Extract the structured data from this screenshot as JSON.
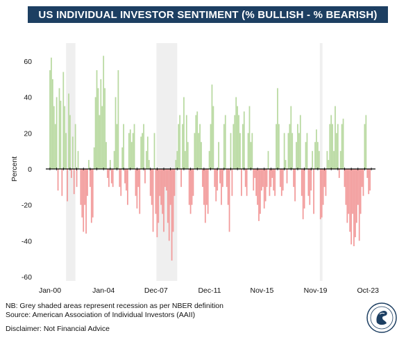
{
  "title": "US INDIVIDUAL INVESTOR SENTIMENT (% BULLISH - % BEARISH)",
  "notes": {
    "nb": "NB: Grey shaded areas represent recession as per NBER definition",
    "source": "Source: American Association of Individual Investors (AAII)",
    "disclaimer": "Disclaimer: Not Financial Advice"
  },
  "colors": {
    "title_bg": "#1d3f62",
    "bullish": "#b8d9a0",
    "bearish": "#f29a9a",
    "recession": "#efefef",
    "zero_line": "#000000"
  },
  "chart_data": {
    "type": "bar",
    "title": "US INDIVIDUAL INVESTOR SENTIMENT (% BULLISH - % BEARISH)",
    "xlabel": "",
    "ylabel": "Percent",
    "ylim": [
      -60,
      60
    ],
    "yticks": [
      60,
      40,
      20,
      0,
      -20,
      -40,
      -60
    ],
    "xlim": [
      2000.0,
      2024.1
    ],
    "xticks": [
      {
        "label": "Jan-00",
        "x": 2000.0
      },
      {
        "label": "Jan-04",
        "x": 2004.0
      },
      {
        "label": "Dec-07",
        "x": 2007.92
      },
      {
        "label": "Dec-11",
        "x": 2011.92
      },
      {
        "label": "Nov-15",
        "x": 2015.83
      },
      {
        "label": "Nov-19",
        "x": 2019.83
      },
      {
        "label": "Oct-23",
        "x": 2023.75
      }
    ],
    "grid": false,
    "recessions": [
      [
        2001.2,
        2001.9
      ],
      [
        2007.95,
        2009.5
      ],
      [
        2020.15,
        2020.35
      ]
    ],
    "series": [
      {
        "points": [
          [
            2000.0,
            55
          ],
          [
            2000.1,
            62
          ],
          [
            2000.2,
            50
          ],
          [
            2000.3,
            35
          ],
          [
            2000.4,
            25
          ],
          [
            2000.5,
            40
          ],
          [
            2000.6,
            -12
          ],
          [
            2000.7,
            45
          ],
          [
            2000.8,
            38
          ],
          [
            2000.9,
            -15
          ],
          [
            2001.0,
            54
          ],
          [
            2001.1,
            35
          ],
          [
            2001.2,
            20
          ],
          [
            2001.3,
            -18
          ],
          [
            2001.4,
            42
          ],
          [
            2001.5,
            30
          ],
          [
            2001.6,
            -5
          ],
          [
            2001.7,
            18
          ],
          [
            2001.8,
            -14
          ],
          [
            2001.9,
            25
          ],
          [
            2002.0,
            -10
          ],
          [
            2002.1,
            10
          ],
          [
            2002.3,
            -20
          ],
          [
            2002.4,
            -27
          ],
          [
            2002.5,
            -35
          ],
          [
            2002.6,
            -20
          ],
          [
            2002.7,
            -36
          ],
          [
            2002.8,
            -15
          ],
          [
            2002.9,
            5
          ],
          [
            2003.0,
            -10
          ],
          [
            2003.1,
            -30
          ],
          [
            2003.2,
            -27
          ],
          [
            2003.3,
            12
          ],
          [
            2003.4,
            40
          ],
          [
            2003.5,
            55
          ],
          [
            2003.6,
            45
          ],
          [
            2003.7,
            30
          ],
          [
            2003.8,
            50
          ],
          [
            2003.9,
            35
          ],
          [
            2004.0,
            63
          ],
          [
            2004.1,
            45
          ],
          [
            2004.2,
            15
          ],
          [
            2004.3,
            -5
          ],
          [
            2004.4,
            -10
          ],
          [
            2004.5,
            5
          ],
          [
            2004.6,
            -8
          ],
          [
            2004.7,
            -10
          ],
          [
            2004.8,
            10
          ],
          [
            2004.9,
            40
          ],
          [
            2005.0,
            25
          ],
          [
            2005.1,
            55
          ],
          [
            2005.2,
            -10
          ],
          [
            2005.3,
            -15
          ],
          [
            2005.4,
            12
          ],
          [
            2005.5,
            25
          ],
          [
            2005.6,
            -8
          ],
          [
            2005.7,
            -12
          ],
          [
            2005.8,
            -20
          ],
          [
            2005.9,
            20
          ],
          [
            2006.0,
            22
          ],
          [
            2006.1,
            15
          ],
          [
            2006.2,
            20
          ],
          [
            2006.3,
            25
          ],
          [
            2006.4,
            -15
          ],
          [
            2006.5,
            -22
          ],
          [
            2006.6,
            -10
          ],
          [
            2006.7,
            -25
          ],
          [
            2006.8,
            18
          ],
          [
            2006.9,
            20
          ],
          [
            2007.0,
            25
          ],
          [
            2007.1,
            -8
          ],
          [
            2007.2,
            10
          ],
          [
            2007.3,
            18
          ],
          [
            2007.4,
            5
          ],
          [
            2007.5,
            -15
          ],
          [
            2007.6,
            -20
          ],
          [
            2007.7,
            -35
          ],
          [
            2007.8,
            20
          ],
          [
            2007.9,
            -25
          ],
          [
            2008.0,
            -38
          ],
          [
            2008.1,
            -30
          ],
          [
            2008.2,
            -15
          ],
          [
            2008.3,
            -20
          ],
          [
            2008.4,
            -25
          ],
          [
            2008.5,
            -35
          ],
          [
            2008.6,
            -10
          ],
          [
            2008.7,
            -12
          ],
          [
            2008.8,
            -30
          ],
          [
            2008.9,
            -40
          ],
          [
            2009.0,
            -20
          ],
          [
            2009.1,
            -51
          ],
          [
            2009.2,
            -35
          ],
          [
            2009.3,
            -15
          ],
          [
            2009.4,
            5
          ],
          [
            2009.5,
            10
          ],
          [
            2009.6,
            25
          ],
          [
            2009.7,
            30
          ],
          [
            2009.8,
            -10
          ],
          [
            2009.9,
            25
          ],
          [
            2010.0,
            40
          ],
          [
            2010.1,
            10
          ],
          [
            2010.2,
            30
          ],
          [
            2010.3,
            15
          ],
          [
            2010.4,
            -20
          ],
          [
            2010.5,
            -25
          ],
          [
            2010.6,
            -20
          ],
          [
            2010.7,
            -15
          ],
          [
            2010.8,
            20
          ],
          [
            2010.9,
            30
          ],
          [
            2011.0,
            32
          ],
          [
            2011.1,
            20
          ],
          [
            2011.2,
            25
          ],
          [
            2011.3,
            15
          ],
          [
            2011.4,
            -10
          ],
          [
            2011.5,
            -20
          ],
          [
            2011.6,
            -30
          ],
          [
            2011.7,
            -20
          ],
          [
            2011.8,
            -25
          ],
          [
            2011.9,
            10
          ],
          [
            2012.0,
            25
          ],
          [
            2012.1,
            47
          ],
          [
            2012.2,
            35
          ],
          [
            2012.3,
            -10
          ],
          [
            2012.4,
            -18
          ],
          [
            2012.5,
            -12
          ],
          [
            2012.6,
            15
          ],
          [
            2012.7,
            -8
          ],
          [
            2012.8,
            -20
          ],
          [
            2012.9,
            -10
          ],
          [
            2013.0,
            25
          ],
          [
            2013.1,
            30
          ],
          [
            2013.2,
            -10
          ],
          [
            2013.3,
            -20
          ],
          [
            2013.4,
            -35
          ],
          [
            2013.5,
            20
          ],
          [
            2013.6,
            -15
          ],
          [
            2013.7,
            25
          ],
          [
            2013.8,
            30
          ],
          [
            2013.9,
            40
          ],
          [
            2014.0,
            35
          ],
          [
            2014.1,
            30
          ],
          [
            2014.2,
            20
          ],
          [
            2014.3,
            -15
          ],
          [
            2014.4,
            25
          ],
          [
            2014.5,
            32
          ],
          [
            2014.6,
            -10
          ],
          [
            2014.7,
            -15
          ],
          [
            2014.8,
            20
          ],
          [
            2014.9,
            35
          ],
          [
            2015.0,
            15
          ],
          [
            2015.1,
            20
          ],
          [
            2015.2,
            -12
          ],
          [
            2015.3,
            -5
          ],
          [
            2015.4,
            -15
          ],
          [
            2015.5,
            -20
          ],
          [
            2015.6,
            -29
          ],
          [
            2015.7,
            -25
          ],
          [
            2015.8,
            -12
          ],
          [
            2015.9,
            -10
          ],
          [
            2016.0,
            -22
          ],
          [
            2016.1,
            -18
          ],
          [
            2016.2,
            -10
          ],
          [
            2016.3,
            10
          ],
          [
            2016.4,
            -15
          ],
          [
            2016.5,
            -10
          ],
          [
            2016.6,
            -5
          ],
          [
            2016.7,
            -12
          ],
          [
            2016.8,
            -15
          ],
          [
            2016.9,
            25
          ],
          [
            2017.0,
            45
          ],
          [
            2017.1,
            25
          ],
          [
            2017.2,
            -10
          ],
          [
            2017.3,
            -15
          ],
          [
            2017.4,
            -12
          ],
          [
            2017.5,
            20
          ],
          [
            2017.6,
            5
          ],
          [
            2017.7,
            -8
          ],
          [
            2017.8,
            20
          ],
          [
            2017.9,
            25
          ],
          [
            2018.0,
            35
          ],
          [
            2018.1,
            20
          ],
          [
            2018.2,
            -10
          ],
          [
            2018.3,
            -18
          ],
          [
            2018.4,
            15
          ],
          [
            2018.5,
            25
          ],
          [
            2018.6,
            20
          ],
          [
            2018.7,
            30
          ],
          [
            2018.8,
            -15
          ],
          [
            2018.9,
            -28
          ],
          [
            2019.0,
            -22
          ],
          [
            2019.1,
            15
          ],
          [
            2019.2,
            20
          ],
          [
            2019.3,
            -15
          ],
          [
            2019.4,
            -20
          ],
          [
            2019.5,
            -12
          ],
          [
            2019.6,
            10
          ],
          [
            2019.7,
            -25
          ],
          [
            2019.8,
            15
          ],
          [
            2019.9,
            22
          ],
          [
            2020.0,
            15
          ],
          [
            2020.1,
            10
          ],
          [
            2020.2,
            -28
          ],
          [
            2020.3,
            -27
          ],
          [
            2020.4,
            -20
          ],
          [
            2020.5,
            -10
          ],
          [
            2020.6,
            -15
          ],
          [
            2020.7,
            10
          ],
          [
            2020.8,
            5
          ],
          [
            2020.9,
            25
          ],
          [
            2021.0,
            30
          ],
          [
            2021.1,
            25
          ],
          [
            2021.2,
            10
          ],
          [
            2021.3,
            35
          ],
          [
            2021.4,
            20
          ],
          [
            2021.5,
            25
          ],
          [
            2021.6,
            -5
          ],
          [
            2021.7,
            10
          ],
          [
            2021.8,
            25
          ],
          [
            2021.9,
            28
          ],
          [
            2022.0,
            -10
          ],
          [
            2022.1,
            -20
          ],
          [
            2022.2,
            -30
          ],
          [
            2022.3,
            -25
          ],
          [
            2022.4,
            -35
          ],
          [
            2022.5,
            -42
          ],
          [
            2022.6,
            -25
          ],
          [
            2022.7,
            -43
          ],
          [
            2022.8,
            -38
          ],
          [
            2022.9,
            -30
          ],
          [
            2023.0,
            -20
          ],
          [
            2023.1,
            -40
          ],
          [
            2023.2,
            -25
          ],
          [
            2023.3,
            -10
          ],
          [
            2023.4,
            -15
          ],
          [
            2023.5,
            25
          ],
          [
            2023.6,
            30
          ],
          [
            2023.7,
            -5
          ],
          [
            2023.8,
            -14
          ],
          [
            2023.9,
            -12
          ]
        ]
      }
    ]
  }
}
